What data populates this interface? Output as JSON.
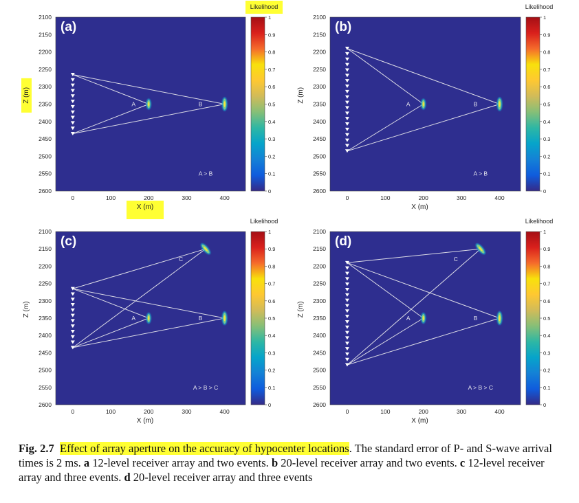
{
  "chart_data": [
    {
      "type": "heatmap",
      "panel_label": "(a)",
      "xlabel": "X (m)",
      "ylabel": "Z (m)",
      "xlabel_highlighted": true,
      "ylabel_highlighted": true,
      "colorbar_title_highlighted": true,
      "xlim": [
        -45,
        455
      ],
      "ylim": [
        2100,
        2600
      ],
      "x_ticks": [
        "0",
        "100",
        "200",
        "300",
        "400"
      ],
      "y_ticks": [
        "2100",
        "2150",
        "2200",
        "2250",
        "2300",
        "2350",
        "2400",
        "2450",
        "2500",
        "2550",
        "2600"
      ],
      "receiver_array": {
        "x": 0,
        "z_top": 2265,
        "z_bottom": 2435,
        "levels": 12
      },
      "events": [
        {
          "name": "A",
          "x": 200,
          "z": 2350
        },
        {
          "name": "B",
          "x": 400,
          "z": 2350
        }
      ],
      "annotation": "A > B",
      "colorbar": {
        "title": "Likelihood",
        "range": [
          0,
          1
        ],
        "ticks": [
          "0",
          "0.1",
          "0.2",
          "0.3",
          "0.4",
          "0.5",
          "0.6",
          "0.7",
          "0.8",
          "0.9",
          "1"
        ]
      }
    },
    {
      "type": "heatmap",
      "panel_label": "(b)",
      "xlabel": "X (m)",
      "ylabel": "Z (m)",
      "xlabel_highlighted": false,
      "ylabel_highlighted": false,
      "colorbar_title_highlighted": false,
      "xlim": [
        -45,
        455
      ],
      "ylim": [
        2100,
        2600
      ],
      "x_ticks": [
        "0",
        "100",
        "200",
        "300",
        "400"
      ],
      "y_ticks": [
        "2100",
        "2150",
        "2200",
        "2250",
        "2300",
        "2350",
        "2400",
        "2450",
        "2500",
        "2550",
        "2600"
      ],
      "receiver_array": {
        "x": 0,
        "z_top": 2190,
        "z_bottom": 2485,
        "levels": 20
      },
      "events": [
        {
          "name": "A",
          "x": 200,
          "z": 2350
        },
        {
          "name": "B",
          "x": 400,
          "z": 2350
        }
      ],
      "annotation": "A > B",
      "colorbar": {
        "title": "Likelihood",
        "range": [
          0,
          1
        ],
        "ticks": [
          "0",
          "0.1",
          "0.2",
          "0.3",
          "0.4",
          "0.5",
          "0.6",
          "0.7",
          "0.8",
          "0.9",
          "1"
        ]
      }
    },
    {
      "type": "heatmap",
      "panel_label": "(c)",
      "xlabel": "X (m)",
      "ylabel": "Z (m)",
      "xlabel_highlighted": false,
      "ylabel_highlighted": false,
      "colorbar_title_highlighted": false,
      "xlim": [
        -45,
        455
      ],
      "ylim": [
        2100,
        2600
      ],
      "x_ticks": [
        "0",
        "100",
        "200",
        "300",
        "400"
      ],
      "y_ticks": [
        "2100",
        "2150",
        "2200",
        "2250",
        "2300",
        "2350",
        "2400",
        "2450",
        "2500",
        "2550",
        "2600"
      ],
      "receiver_array": {
        "x": 0,
        "z_top": 2265,
        "z_bottom": 2435,
        "levels": 12
      },
      "events": [
        {
          "name": "A",
          "x": 200,
          "z": 2350
        },
        {
          "name": "B",
          "x": 400,
          "z": 2350
        },
        {
          "name": "C",
          "x": 350,
          "z": 2150
        }
      ],
      "annotation": "A > B > C",
      "colorbar": {
        "title": "Likelihood",
        "range": [
          0,
          1
        ],
        "ticks": [
          "0",
          "0.1",
          "0.2",
          "0.3",
          "0.4",
          "0.5",
          "0.6",
          "0.7",
          "0.8",
          "0.9",
          "1"
        ]
      }
    },
    {
      "type": "heatmap",
      "panel_label": "(d)",
      "xlabel": "X (m)",
      "ylabel": "Z (m)",
      "xlabel_highlighted": false,
      "ylabel_highlighted": false,
      "colorbar_title_highlighted": false,
      "xlim": [
        -45,
        455
      ],
      "ylim": [
        2100,
        2600
      ],
      "x_ticks": [
        "0",
        "100",
        "200",
        "300",
        "400"
      ],
      "y_ticks": [
        "2100",
        "2150",
        "2200",
        "2250",
        "2300",
        "2350",
        "2400",
        "2450",
        "2500",
        "2550",
        "2600"
      ],
      "receiver_array": {
        "x": 0,
        "z_top": 2190,
        "z_bottom": 2485,
        "levels": 20
      },
      "events": [
        {
          "name": "A",
          "x": 200,
          "z": 2350
        },
        {
          "name": "B",
          "x": 400,
          "z": 2350
        },
        {
          "name": "C",
          "x": 350,
          "z": 2150
        }
      ],
      "annotation": "A > B > C",
      "colorbar": {
        "title": "Likelihood",
        "range": [
          0,
          1
        ],
        "ticks": [
          "0",
          "0.1",
          "0.2",
          "0.3",
          "0.4",
          "0.5",
          "0.6",
          "0.7",
          "0.8",
          "0.9",
          "1"
        ]
      }
    }
  ],
  "colors": {
    "plot_background": "#2e2e8f",
    "ray_lines": "#dcdce6",
    "receiver_markers": "#ffffff",
    "highlight": "#ffff33",
    "colormap": [
      "#352a87",
      "#0f5cdd",
      "#1481d6",
      "#06a4ca",
      "#2eb7a4",
      "#87bf77",
      "#d1bb59",
      "#fec832",
      "#f8e10c",
      "#f56b2b",
      "#d9201c",
      "#a50f15"
    ]
  },
  "caption": {
    "label": "Fig. 2.7",
    "highlighted_title": "Effect of array aperture on the accuracy of hypocenter locations",
    "text_1": ". The standard error of P- and S-wave arrival times is 2 ms. ",
    "a_label": "a",
    "a_text": " 12-level receiver array and two events. ",
    "b_label": "b",
    "b_text": " 20-level receiver array and two events. ",
    "c_label": "c",
    "c_text": " 12-level receiver array and three events. ",
    "d_label": "d",
    "d_text": " 20-level receiver array and three events"
  }
}
